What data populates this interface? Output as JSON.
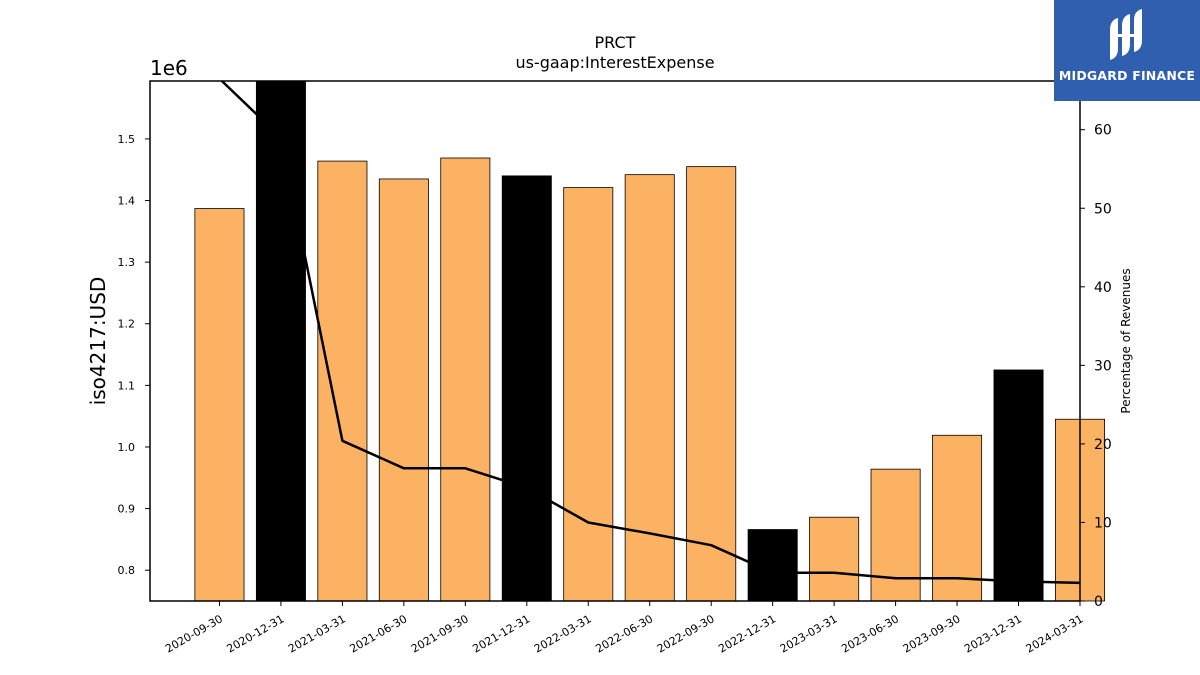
{
  "chart_data": {
    "type": "bar",
    "title": "PRCT",
    "subtitle": "us-gaap:InterestExpense",
    "ylabel": "iso4217:USD",
    "y_multiplier": "1e6",
    "y2label": "Percentage of Revenues",
    "categories": [
      "2020-09-30",
      "2020-12-31",
      "2021-03-31",
      "2021-06-30",
      "2021-09-30",
      "2021-12-31",
      "2022-03-31",
      "2022-06-30",
      "2022-09-30",
      "2022-12-31",
      "2023-03-31",
      "2023-06-30",
      "2023-09-30",
      "2023-12-31",
      "2024-03-31"
    ],
    "series": [
      {
        "values": [
          1387000,
          1595000,
          1464000,
          1435000,
          1469000,
          1440000,
          1421000,
          1442000,
          1455000,
          866000,
          886000,
          964000,
          1019000,
          1125000,
          1045000
        ],
        "bar_colors": [
          "#fbb262",
          "#000000",
          "#fbb262",
          "#fbb262",
          "#fbb262",
          "#000000",
          "#fbb262",
          "#fbb262",
          "#fbb262",
          "#000000",
          "#fbb262",
          "#fbb262",
          "#fbb262",
          "#000000",
          "#fbb262"
        ]
      },
      {
        "axis": "right",
        "type": "line",
        "values": [
          66.5,
          59.0,
          20.4,
          16.9,
          16.9,
          14.4,
          10.0,
          8.6,
          7.1,
          3.6,
          3.6,
          2.9,
          2.9,
          2.5,
          2.3
        ]
      }
    ],
    "ylim": [
      750000,
      1594000
    ],
    "yticks": [
      0.8,
      0.9,
      1.0,
      1.1,
      1.2,
      1.3,
      1.4,
      1.5
    ],
    "y2lim": [
      0,
      66.2
    ],
    "y2ticks": [
      0,
      10,
      20,
      30,
      40,
      50,
      60
    ],
    "grid": false,
    "colors": {
      "bar": "#fbb262",
      "highlight_bar": "#000000",
      "line": "#000000"
    }
  },
  "logo": {
    "text": "MIDGARD FINANCE",
    "background": "#2f5fae"
  }
}
